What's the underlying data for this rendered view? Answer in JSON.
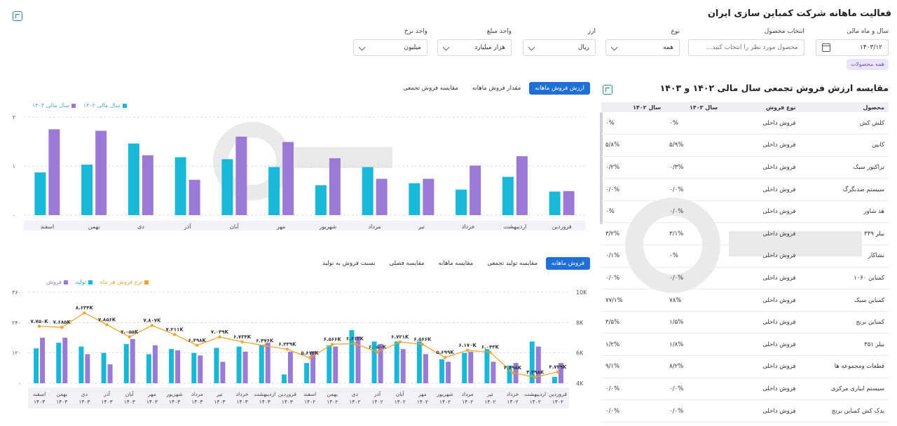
{
  "page": {
    "title": "فعالیت ماهانه شرکت کمباین سازی ایران"
  },
  "filters": {
    "year_label": "سال و ماه مالی",
    "year_value": "۱۴۰۳/۱۲",
    "product_label": "انتخاب محصول",
    "product_placeholder": "محصول مورد نظر را انتخاب کنید...",
    "type_label": "نوع",
    "type_value": "همه",
    "currency_label": "ارز",
    "currency_value": "ریال",
    "amount_unit_label": "واحد مبلغ",
    "amount_unit_value": "هزار میلیارد",
    "rate_unit_label": "واحد نرخ",
    "rate_unit_value": "میلیون",
    "all_products_chip": "همه محصولات"
  },
  "table": {
    "title": "مقایسه ارزش فروش تجمعی سال مالی ۱۴۰۲ و ۱۴۰۳",
    "headers": [
      "محصول",
      "نوع فروش",
      "سال ۱۴۰۳",
      "سال ۱۴۰۲"
    ],
    "rows": [
      [
        "کلش کش",
        "فروش داخلی",
        "۰%",
        "۰%"
      ],
      [
        "کابین",
        "فروش داخلی",
        "۵/۹%",
        "۵/۸%"
      ],
      [
        "تراکتور سبک",
        "فروش داخلی",
        "۰/۳%",
        "۰/۲%"
      ],
      [
        "سیستم ضدنگرگ",
        "فروش داخلی",
        "۰/۰%",
        "۰/۰%"
      ],
      [
        "هد شاور",
        "فروش داخلی",
        "۰/۰%",
        "۰%"
      ],
      [
        "بیلر ۳۴۹",
        "فروش داخلی",
        "۳/۱%",
        "۳/۲%"
      ],
      [
        "نشاکار",
        "فروش داخلی",
        "۰%",
        "۰/۱%"
      ],
      [
        "کمباین ۱۰۶۰",
        "فروش داخلی",
        "۰/۰%",
        "۰/۰%"
      ],
      [
        "کمباین سبک",
        "فروش داخلی",
        "۷۸%",
        "۷۷/۱%"
      ],
      [
        "کمباین برنج",
        "فروش داخلی",
        "۱/۵%",
        "۳/۵%"
      ],
      [
        "بیلر ۳۵۱",
        "فروش داخلی",
        "۱/۸%",
        "۱/۲%"
      ],
      [
        "قطعات ومجموعه ها",
        "فروش داخلی",
        "۸/۲%",
        "۹/۱%"
      ],
      [
        "سیستم ابیاری مرکزی",
        "فروش داخلی",
        "۰/۰%",
        "۰/۰%"
      ],
      [
        "یدک کش کمباین برنج",
        "فروش داخلی",
        "۰/۰%",
        "۰/۰%"
      ]
    ]
  },
  "chart1": {
    "tabs": [
      "ارزش فروش ماهانه",
      "مقدار فروش ماهانه",
      "مقایسه فروش تجمعی"
    ],
    "legend": [
      "سال مالی ۱۴۰۳",
      "سال مالی ۱۴۰۲"
    ]
  },
  "chart2": {
    "tabs": [
      "فروش ماهانه",
      "مقایسه تولید تجمعی",
      "مقایسه ماهانه",
      "مقایسه فصلی",
      "نسبت فروش به تولید"
    ],
    "legend": [
      "فروش",
      "تولید",
      "نرخ فروش هر ماه"
    ]
  },
  "colors": {
    "cyan": "#1ab8d8",
    "purple": "#9b7ad6",
    "orange": "#f0a530",
    "accent": "#1f6fd6"
  },
  "chart_data": [
    {
      "type": "bar",
      "categories": [
        "فروردین",
        "اردیبهشت",
        "خرداد",
        "تیر",
        "مرداد",
        "شهریور",
        "مهر",
        "آبان",
        "آذر",
        "دی",
        "بهمن",
        "اسفند"
      ],
      "series": [
        {
          "name": "سال مالی ۱۴۰۲",
          "values": [
            0.48,
            0.78,
            0.52,
            0.65,
            0.98,
            0.61,
            0.98,
            1.14,
            1.18,
            1.46,
            1.03,
            0.87
          ]
        },
        {
          "name": "سال مالی ۱۴۰۳",
          "values": [
            0.49,
            1.2,
            1.01,
            0.74,
            0.74,
            1.16,
            1.49,
            1.6,
            0.72,
            1.22,
            1.72,
            1.75
          ]
        }
      ],
      "yticks": [
        "۰",
        "۱",
        "۲"
      ],
      "ylim": [
        0,
        2
      ]
    },
    {
      "type": "bar",
      "categories": [
        "فروردین ۱۴۰۲",
        "اردیبهشت ۱۴۰۲",
        "خرداد ۱۴۰۲",
        "تیر ۱۴۰۲",
        "مرداد ۱۴۰۲",
        "شهریور ۱۴۰۲",
        "مهر ۱۴۰۲",
        "آبان ۱۴۰۲",
        "آذر ۱۴۰۲",
        "دی ۱۴۰۲",
        "بهمن ۱۴۰۲",
        "اسفند ۱۴۰۲",
        "فروردین ۱۴۰۳",
        "اردیبهشت ۱۴۰۳",
        "خرداد ۱۴۰۳",
        "تیر ۱۴۰۳",
        "مرداد ۱۴۰۳",
        "شهریور ۱۴۰۳",
        "مهر ۱۴۰۳",
        "آبان ۱۴۰۳",
        "آذر ۱۴۰۳",
        "دی ۱۴۰۳",
        "بهمن ۱۴۰۳",
        "اسفند ۱۴۰۳"
      ],
      "series": [
        {
          "name": "تولید",
          "values": [
            25,
            165,
            70,
            135,
            120,
            95,
            165,
            165,
            165,
            210,
            150,
            80,
            35,
            150,
            145,
            140,
            120,
            135,
            115,
            155,
            120,
            145,
            160,
            138
          ]
        },
        {
          "name": "فروش",
          "values": [
            80,
            145,
            80,
            85,
            125,
            85,
            115,
            135,
            155,
            185,
            145,
            125,
            125,
            160,
            125,
            85,
            110,
            130,
            150,
            175,
            75,
            115,
            180,
            180
          ]
        },
        {
          "name": "نرخ فروش هر ماه",
          "values": [
            4.749,
            4.398,
            4.698,
            6.043,
            6.17,
            5.699,
            6.566,
            6.721,
            6.05,
            6.612,
            6.566,
            5.673,
            6.239,
            6.476,
            6.734,
            7.049,
            6.498,
            7.211,
            7.807,
            7.055,
            7.856,
            8.634,
            7.685,
            7.75
          ]
        }
      ],
      "labels": [
        "۴.۷۴۹K",
        "۴.۳۹۸K",
        "۴.۶۹۸K",
        "۶.۰۴۳K",
        "۶.۱۷۰K",
        "۵.۶۹۹K",
        "۶.۵۶۶K",
        "۶.۷۲۱K",
        "۶.۰۵۰K",
        "۶.۶۱۲K",
        "۶.۵۶۶K",
        "۵.۶۷۳K",
        "۶.۲۳۹K",
        "۶.۴۷۶K",
        "۶.۷۳۴K",
        "۷.۰۴۹K",
        "۶.۴۹۸K",
        "۷.۲۱۱K",
        "۷.۸۰۷K",
        "۷.۰۵۵K",
        "۷.۸۵۶K",
        "۸.۶۳۴K",
        "۷.۶۸۵K",
        "۷.۷۵۰K"
      ],
      "yticks_left": [
        "۰",
        "۱۲۰",
        "۲۴۰",
        "۳۶۰"
      ],
      "yticks_right": [
        "4K",
        "6K",
        "8K",
        "10K"
      ],
      "ylim_left": [
        0,
        360
      ],
      "ylim_right": [
        4,
        10
      ]
    }
  ]
}
